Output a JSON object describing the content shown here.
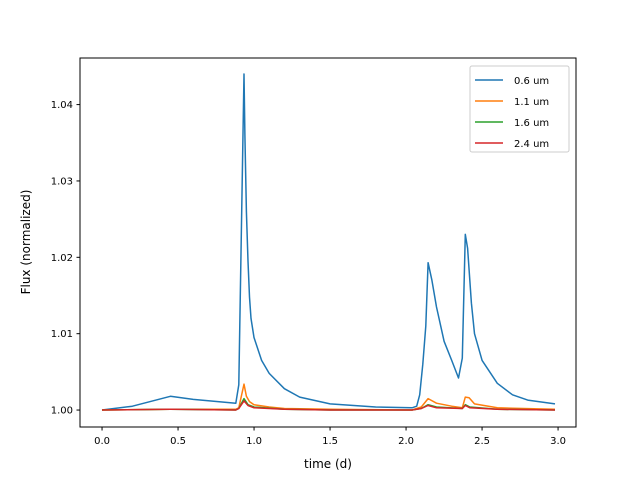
{
  "chart_data": {
    "type": "line",
    "title": "",
    "xlabel": "time (d)",
    "ylabel": "Flux (normalized)",
    "xlim": [
      -0.145,
      3.118
    ],
    "ylim": [
      0.99778,
      1.0461
    ],
    "xticks": [
      0.0,
      0.5,
      1.0,
      1.5,
      2.0,
      2.5,
      3.0
    ],
    "xtick_labels": [
      "0.0",
      "0.5",
      "1.0",
      "1.5",
      "2.0",
      "2.5",
      "3.0"
    ],
    "yticks": [
      1.0,
      1.01,
      1.02,
      1.03,
      1.04
    ],
    "ytick_labels": [
      "1.00",
      "1.01",
      "1.02",
      "1.03",
      "1.04"
    ],
    "grid": false,
    "legend_placement": "upper right",
    "series": [
      {
        "name": "0.6 um",
        "color": "#1f77b4",
        "x": [
          0,
          0.2,
          0.45,
          0.6,
          0.88,
          0.9,
          0.934,
          0.94,
          0.95,
          0.96,
          0.97,
          0.98,
          1.0,
          1.05,
          1.1,
          1.2,
          1.3,
          1.5,
          1.8,
          2.04,
          2.07,
          2.09,
          2.11,
          2.13,
          2.145,
          2.17,
          2.2,
          2.25,
          2.3,
          2.345,
          2.37,
          2.39,
          2.405,
          2.43,
          2.45,
          2.5,
          2.6,
          2.7,
          2.8,
          2.98
        ],
        "y": [
          1.0,
          1.0005,
          1.0018,
          1.0014,
          1.0009,
          1.0033,
          1.044,
          1.036,
          1.026,
          1.0195,
          1.0148,
          1.012,
          1.0095,
          1.0065,
          1.0048,
          1.0028,
          1.0017,
          1.0008,
          1.0004,
          1.0003,
          1.0005,
          1.002,
          1.006,
          1.011,
          1.0193,
          1.017,
          1.0135,
          1.009,
          1.0065,
          1.0042,
          1.0068,
          1.023,
          1.0212,
          1.014,
          1.01,
          1.0065,
          1.0035,
          1.002,
          1.0013,
          1.0008
        ]
      },
      {
        "name": "1.1 um",
        "color": "#ff7f0e",
        "x": [
          0,
          0.45,
          0.88,
          0.9,
          0.934,
          0.95,
          0.97,
          1.0,
          1.1,
          1.2,
          1.5,
          2.04,
          2.1,
          2.145,
          2.2,
          2.3,
          2.37,
          2.39,
          2.415,
          2.45,
          2.6,
          2.98
        ],
        "y": [
          1.0,
          1.0001,
          1.0001,
          1.0003,
          1.0034,
          1.0018,
          1.0011,
          1.0007,
          1.0004,
          1.0002,
          1.0001,
          1.0,
          1.0004,
          1.0015,
          1.0009,
          1.0005,
          1.0003,
          1.0017,
          1.0016,
          1.0008,
          1.0003,
          1.0001
        ]
      },
      {
        "name": "1.6 um",
        "color": "#2ca02c",
        "x": [
          0,
          0.45,
          0.88,
          0.9,
          0.934,
          0.96,
          1.0,
          1.2,
          1.5,
          2.04,
          2.1,
          2.145,
          2.2,
          2.37,
          2.39,
          2.42,
          2.6,
          2.98
        ],
        "y": [
          1.0,
          1.0001,
          1.0,
          1.0002,
          1.0015,
          1.0007,
          1.0004,
          1.0001,
          1.0,
          1.0,
          1.0002,
          1.0007,
          1.0004,
          1.0002,
          1.0007,
          1.0004,
          1.0001,
          1.0
        ]
      },
      {
        "name": "2.4 um",
        "color": "#d62728",
        "x": [
          0,
          0.45,
          0.88,
          0.9,
          0.934,
          0.96,
          1.0,
          1.2,
          1.5,
          2.04,
          2.1,
          2.145,
          2.2,
          2.37,
          2.39,
          2.42,
          2.6,
          2.98
        ],
        "y": [
          1.0,
          1.0001,
          1.0,
          1.0002,
          1.0012,
          1.0006,
          1.0003,
          1.0001,
          1.0,
          1.0,
          1.0002,
          1.0006,
          1.0003,
          1.0002,
          1.0006,
          1.0003,
          1.0001,
          1.0
        ]
      }
    ]
  }
}
